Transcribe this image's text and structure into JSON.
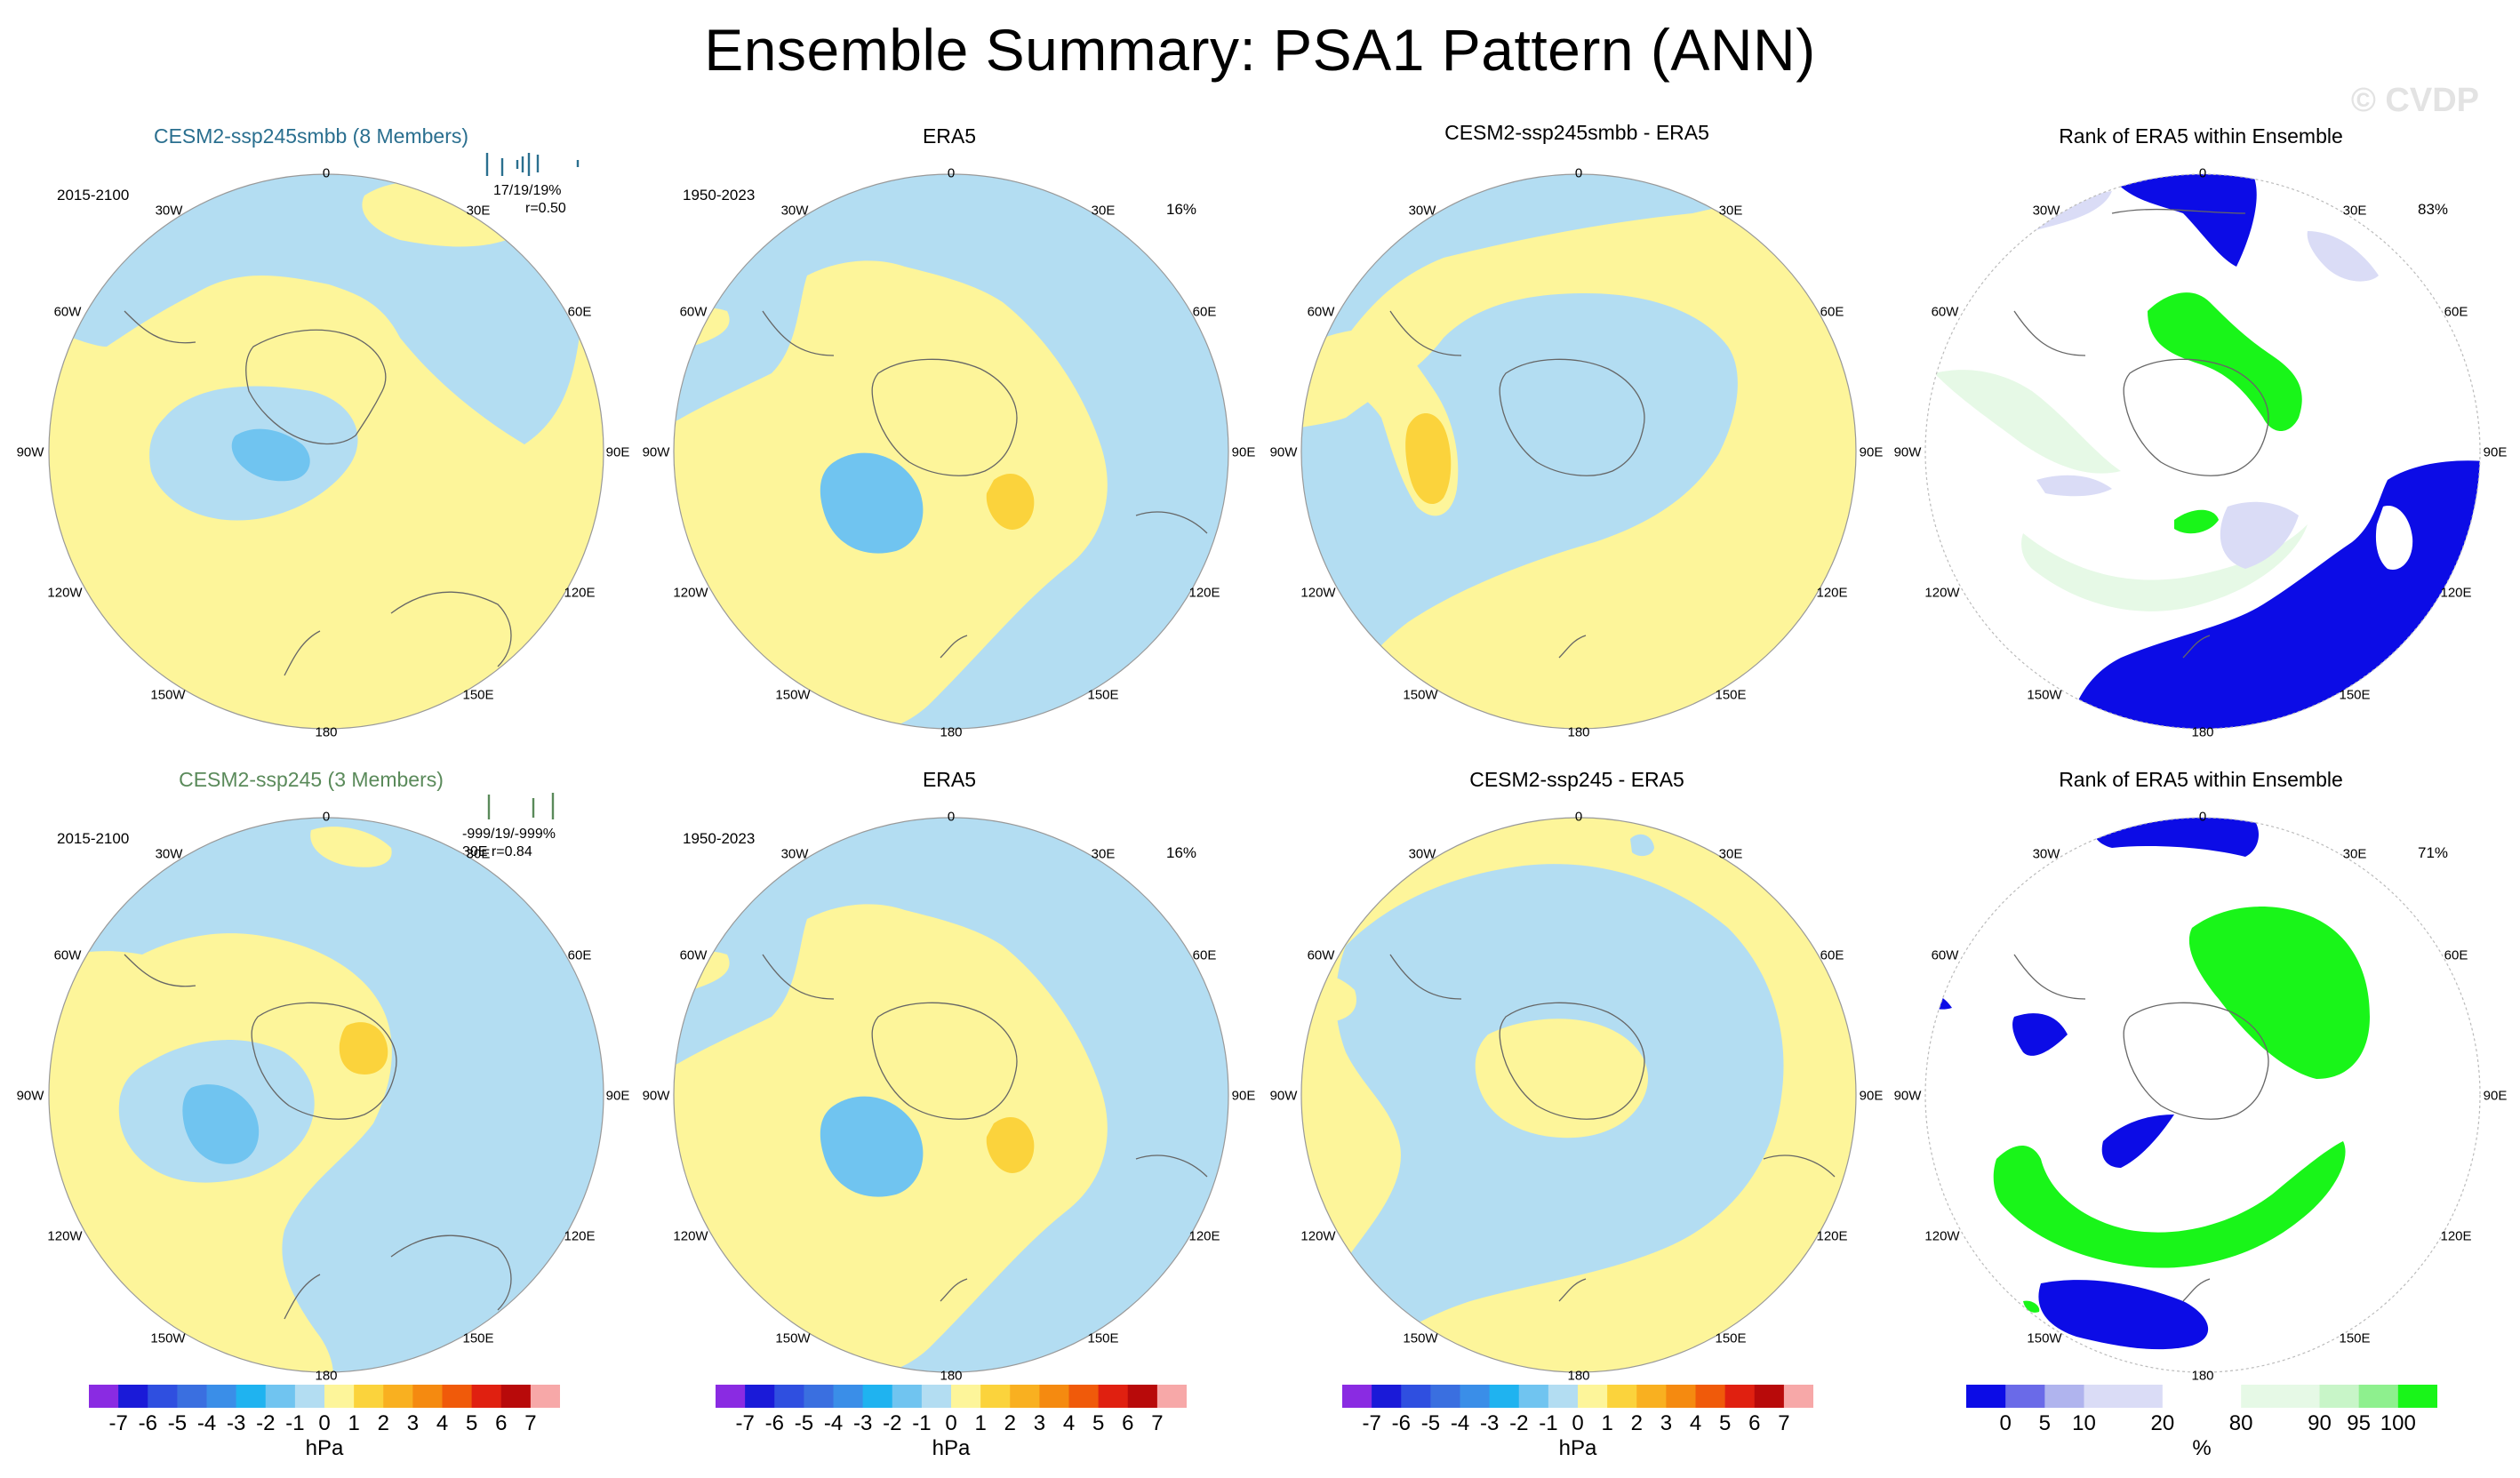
{
  "figure": {
    "title": "Ensemble Summary: PSA1 Pattern (ANN)",
    "watermark": "© CVDP"
  },
  "colors": {
    "yellow": "#fdf59a",
    "lightblue": "#b3ddf2",
    "blue2": "#70c4f0",
    "orange1": "#fbd33c",
    "rank_blue": "#0c0ce6",
    "rank_lav": "#dadcf6",
    "rank_mint": "#e6f9e6",
    "rank_green": "#19f519",
    "coast": "#666666"
  },
  "lon_labels": [
    "0",
    "30E",
    "60E",
    "90E",
    "120E",
    "150E",
    "180",
    "150W",
    "120W",
    "90W",
    "60W",
    "30W"
  ],
  "panels": [
    {
      "id": "r1c1",
      "title": "CESM2-ssp245smbb (8 Members)",
      "title_color": "#2a6f8f",
      "period": "2015-2100",
      "stats_line1": "17/19/19%",
      "stats_line2": "r=0.50"
    },
    {
      "id": "r1c2",
      "title": "ERA5",
      "period": "1950-2023",
      "pct": "16%"
    },
    {
      "id": "r1c3",
      "title": "CESM2-ssp245smbb - ERA5"
    },
    {
      "id": "r1c4",
      "title": "Rank of ERA5 within Ensemble",
      "pct": "83%"
    },
    {
      "id": "r2c1",
      "title": "CESM2-ssp245 (3 Members)",
      "title_color": "#5a8a5a",
      "period": "2015-2100",
      "stats_line1": "-999/19/-999%",
      "stats_line2": "30E r=0.84"
    },
    {
      "id": "r2c2",
      "title": "ERA5",
      "period": "1950-2023",
      "pct": "16%"
    },
    {
      "id": "r2c3",
      "title": "CESM2-ssp245 - ERA5"
    },
    {
      "id": "r2c4",
      "title": "Rank of ERA5 within Ensemble",
      "pct": "71%"
    }
  ],
  "hpa_colorbar": {
    "unit": "hPa",
    "labels": [
      "-7",
      "-6",
      "-5",
      "-4",
      "-3",
      "-2",
      "-1",
      "0",
      "1",
      "2",
      "3",
      "4",
      "5",
      "6",
      "7"
    ],
    "colors": [
      "#8a2be2",
      "#1a1ad8",
      "#2f4fe0",
      "#3a6fe0",
      "#3a8ee8",
      "#1fb3f0",
      "#70c4f0",
      "#b3ddf2",
      "#fdf59a",
      "#fbd33c",
      "#f9b020",
      "#f58a10",
      "#f05a0a",
      "#e02010",
      "#b80a0a",
      "#f7a8a8"
    ]
  },
  "rank_colorbar": {
    "unit": "%",
    "labels": [
      "0",
      "5",
      "10",
      "20",
      "80",
      "90",
      "95",
      "100"
    ],
    "colors": [
      "#0c0ce6",
      "#6a6ae8",
      "#b0b4ee",
      "#dadcf6",
      "#dadcf6",
      "#ffffff",
      "#ffffff",
      "#e6f9e6",
      "#e6f9e6",
      "#c8f5c8",
      "#8ef08e",
      "#19f519"
    ]
  }
}
